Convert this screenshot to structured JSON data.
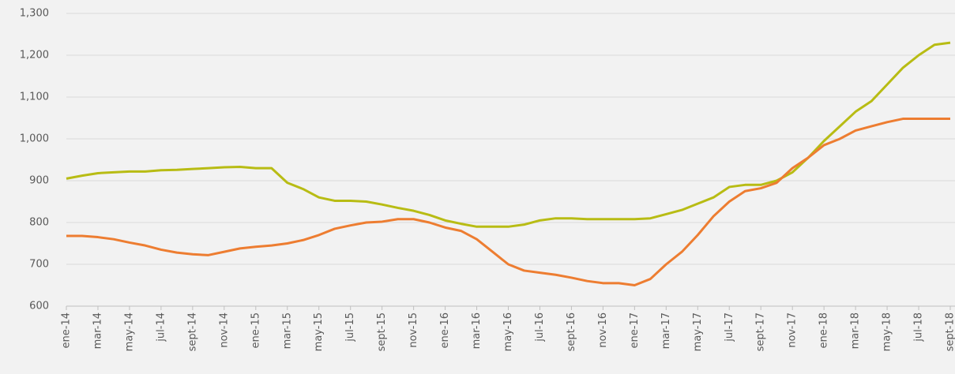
{
  "chart_data": {
    "type": "line",
    "categories": [
      "ene-14",
      null,
      "mar-14",
      null,
      "may-14",
      null,
      "jul-14",
      null,
      "sept-14",
      null,
      "nov-14",
      null,
      "ene-15",
      null,
      "mar-15",
      null,
      "may-15",
      null,
      "jul-15",
      null,
      "sept-15",
      null,
      "nov-15",
      null,
      "ene-16",
      null,
      "mar-16",
      null,
      "may-16",
      null,
      "jul-16",
      null,
      "sept-16",
      null,
      "nov-16",
      null,
      "ene-17",
      null,
      "mar-17",
      null,
      "may-17",
      null,
      "jul-17",
      null,
      "sept-17",
      null,
      "nov-17",
      null,
      "ene-18",
      null,
      "mar-18",
      null,
      "may-18",
      null,
      "jul-18",
      null,
      "sept-18"
    ],
    "series": [
      {
        "color": "#b8bc14",
        "values": [
          905,
          912,
          918,
          920,
          922,
          922,
          925,
          926,
          928,
          930,
          932,
          933,
          930,
          930,
          895,
          880,
          860,
          852,
          852,
          850,
          843,
          835,
          828,
          818,
          805,
          797,
          790,
          790,
          790,
          795,
          805,
          810,
          810,
          808,
          808,
          808,
          808,
          810,
          820,
          830,
          845,
          860,
          885,
          890,
          890,
          900,
          920,
          955,
          995,
          1030,
          1065,
          1090,
          1130,
          1170,
          1200,
          1225,
          1230
        ]
      },
      {
        "color": "#ed7d31",
        "values": [
          768,
          768,
          765,
          760,
          752,
          745,
          735,
          728,
          724,
          722,
          730,
          738,
          742,
          745,
          750,
          758,
          770,
          785,
          793,
          800,
          802,
          808,
          808,
          800,
          788,
          780,
          760,
          730,
          700,
          685,
          680,
          675,
          668,
          660,
          655,
          655,
          650,
          665,
          700,
          730,
          770,
          815,
          850,
          875,
          882,
          895,
          930,
          955,
          985,
          1000,
          1020,
          1030,
          1040,
          1048,
          1048,
          1048,
          1048
        ]
      }
    ],
    "ylim": [
      600,
      1300
    ],
    "yticks": [
      600,
      700,
      800,
      900,
      {
        "value": 1000,
        "label": "1,000"
      },
      {
        "value": 1100,
        "label": "1,100"
      },
      {
        "value": 1200,
        "label": "1,200"
      },
      {
        "value": 1300,
        "label": "1,300"
      }
    ],
    "grid": true
  }
}
